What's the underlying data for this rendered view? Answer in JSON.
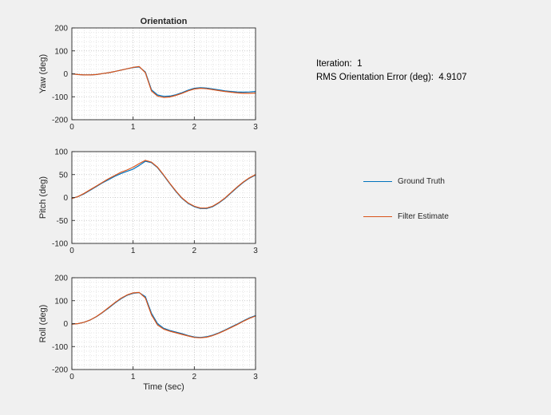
{
  "colors": {
    "figure_bg": "#f0f0f0",
    "axes_bg": "#ffffff",
    "axes_line": "#262626",
    "grid_major": "#c3c3c3",
    "grid_minor": "#dedede",
    "ground_truth": "#0072BD",
    "filter_estimate": "#D95319"
  },
  "annotation": {
    "iteration_label": "Iteration:  1",
    "rms_label": "RMS Orientation Error (deg):  4.9107"
  },
  "legend": {
    "items": [
      {
        "label": "Ground Truth",
        "color": "#0072BD"
      },
      {
        "label": "Filter Estimate",
        "color": "#D95319"
      }
    ]
  },
  "chart_data": [
    {
      "type": "line",
      "title": "Orientation",
      "ylabel": "Yaw (deg)",
      "xlabel": "",
      "xlim": [
        0,
        3
      ],
      "ylim": [
        -200,
        200
      ],
      "xticks": [
        0,
        1,
        2,
        3
      ],
      "yticks": [
        -200,
        -100,
        0,
        100,
        200
      ],
      "minor_x": 0.1,
      "minor_y": 20,
      "grid": "dotted",
      "legend_position": "outside-right",
      "x": [
        0,
        0.1,
        0.2,
        0.3,
        0.4,
        0.5,
        0.6,
        0.7,
        0.8,
        0.9,
        1,
        1.1,
        1.2,
        1.3,
        1.4,
        1.5,
        1.6,
        1.7,
        1.8,
        1.9,
        2,
        2.1,
        2.2,
        2.3,
        2.4,
        2.5,
        2.6,
        2.7,
        2.8,
        2.9,
        3
      ],
      "series": [
        {
          "name": "Ground Truth",
          "color": "#0072BD",
          "y": [
            0,
            -3,
            -5,
            -5,
            -3,
            1,
            5,
            10,
            16,
            22,
            27,
            30,
            8,
            -70,
            -92,
            -98,
            -97,
            -91,
            -82,
            -71,
            -63,
            -60,
            -62,
            -66,
            -70,
            -74,
            -77,
            -79,
            -80,
            -79,
            -77
          ]
        },
        {
          "name": "Filter Estimate",
          "color": "#D95319",
          "y": [
            0,
            -3,
            -5,
            -5,
            -3,
            1,
            5,
            10,
            16,
            22,
            28,
            32,
            5,
            -75,
            -97,
            -103,
            -101,
            -94,
            -85,
            -74,
            -66,
            -63,
            -65,
            -69,
            -73,
            -77,
            -80,
            -83,
            -85,
            -85,
            -84
          ]
        }
      ]
    },
    {
      "type": "line",
      "title": "",
      "ylabel": "Pitch (deg)",
      "xlabel": "",
      "xlim": [
        0,
        3
      ],
      "ylim": [
        -100,
        100
      ],
      "xticks": [
        0,
        1,
        2,
        3
      ],
      "yticks": [
        -100,
        -50,
        0,
        50,
        100
      ],
      "minor_x": 0.1,
      "minor_y": 10,
      "grid": "dotted",
      "x": [
        0,
        0.1,
        0.2,
        0.3,
        0.4,
        0.5,
        0.6,
        0.7,
        0.8,
        0.9,
        1,
        1.1,
        1.2,
        1.3,
        1.4,
        1.5,
        1.6,
        1.7,
        1.8,
        1.9,
        2,
        2.1,
        2.2,
        2.3,
        2.4,
        2.5,
        2.6,
        2.7,
        2.8,
        2.9,
        3
      ],
      "series": [
        {
          "name": "Ground Truth",
          "color": "#0072BD",
          "y": [
            -2,
            2,
            8,
            16,
            24,
            32,
            39,
            46,
            52,
            57,
            62,
            70,
            79,
            76,
            65,
            48,
            30,
            13,
            -2,
            -13,
            -20,
            -24,
            -24,
            -20,
            -12,
            -2,
            10,
            22,
            33,
            42,
            49
          ]
        },
        {
          "name": "Filter Estimate",
          "color": "#D95319",
          "y": [
            -2,
            2,
            9,
            17,
            25,
            33,
            41,
            48,
            55,
            60,
            66,
            74,
            81,
            77,
            66,
            49,
            31,
            14,
            -1,
            -12,
            -19,
            -23,
            -23,
            -19,
            -11,
            -1,
            11,
            23,
            34,
            43,
            50
          ]
        }
      ]
    },
    {
      "type": "line",
      "title": "",
      "ylabel": "Roll (deg)",
      "xlabel": "Time (sec)",
      "xlim": [
        0,
        3
      ],
      "ylim": [
        -200,
        200
      ],
      "xticks": [
        0,
        1,
        2,
        3
      ],
      "yticks": [
        -200,
        -100,
        0,
        100,
        200
      ],
      "minor_x": 0.1,
      "minor_y": 20,
      "grid": "dotted",
      "x": [
        0,
        0.1,
        0.2,
        0.3,
        0.4,
        0.5,
        0.6,
        0.7,
        0.8,
        0.9,
        1,
        1.1,
        1.2,
        1.3,
        1.4,
        1.5,
        1.6,
        1.7,
        1.8,
        1.9,
        2,
        2.1,
        2.2,
        2.3,
        2.4,
        2.5,
        2.6,
        2.7,
        2.8,
        2.9,
        3
      ],
      "series": [
        {
          "name": "Ground Truth",
          "color": "#0072BD",
          "y": [
            -2,
            0,
            6,
            16,
            30,
            48,
            68,
            89,
            108,
            123,
            132,
            135,
            118,
            45,
            0,
            -20,
            -30,
            -37,
            -44,
            -52,
            -58,
            -60,
            -57,
            -50,
            -40,
            -28,
            -15,
            -2,
            12,
            25,
            35
          ]
        },
        {
          "name": "Filter Estimate",
          "color": "#D95319",
          "y": [
            -2,
            0,
            6,
            16,
            31,
            49,
            70,
            91,
            110,
            125,
            134,
            136,
            112,
            38,
            -6,
            -24,
            -33,
            -40,
            -47,
            -54,
            -60,
            -62,
            -59,
            -52,
            -42,
            -30,
            -17,
            -4,
            10,
            23,
            33
          ]
        }
      ]
    }
  ]
}
